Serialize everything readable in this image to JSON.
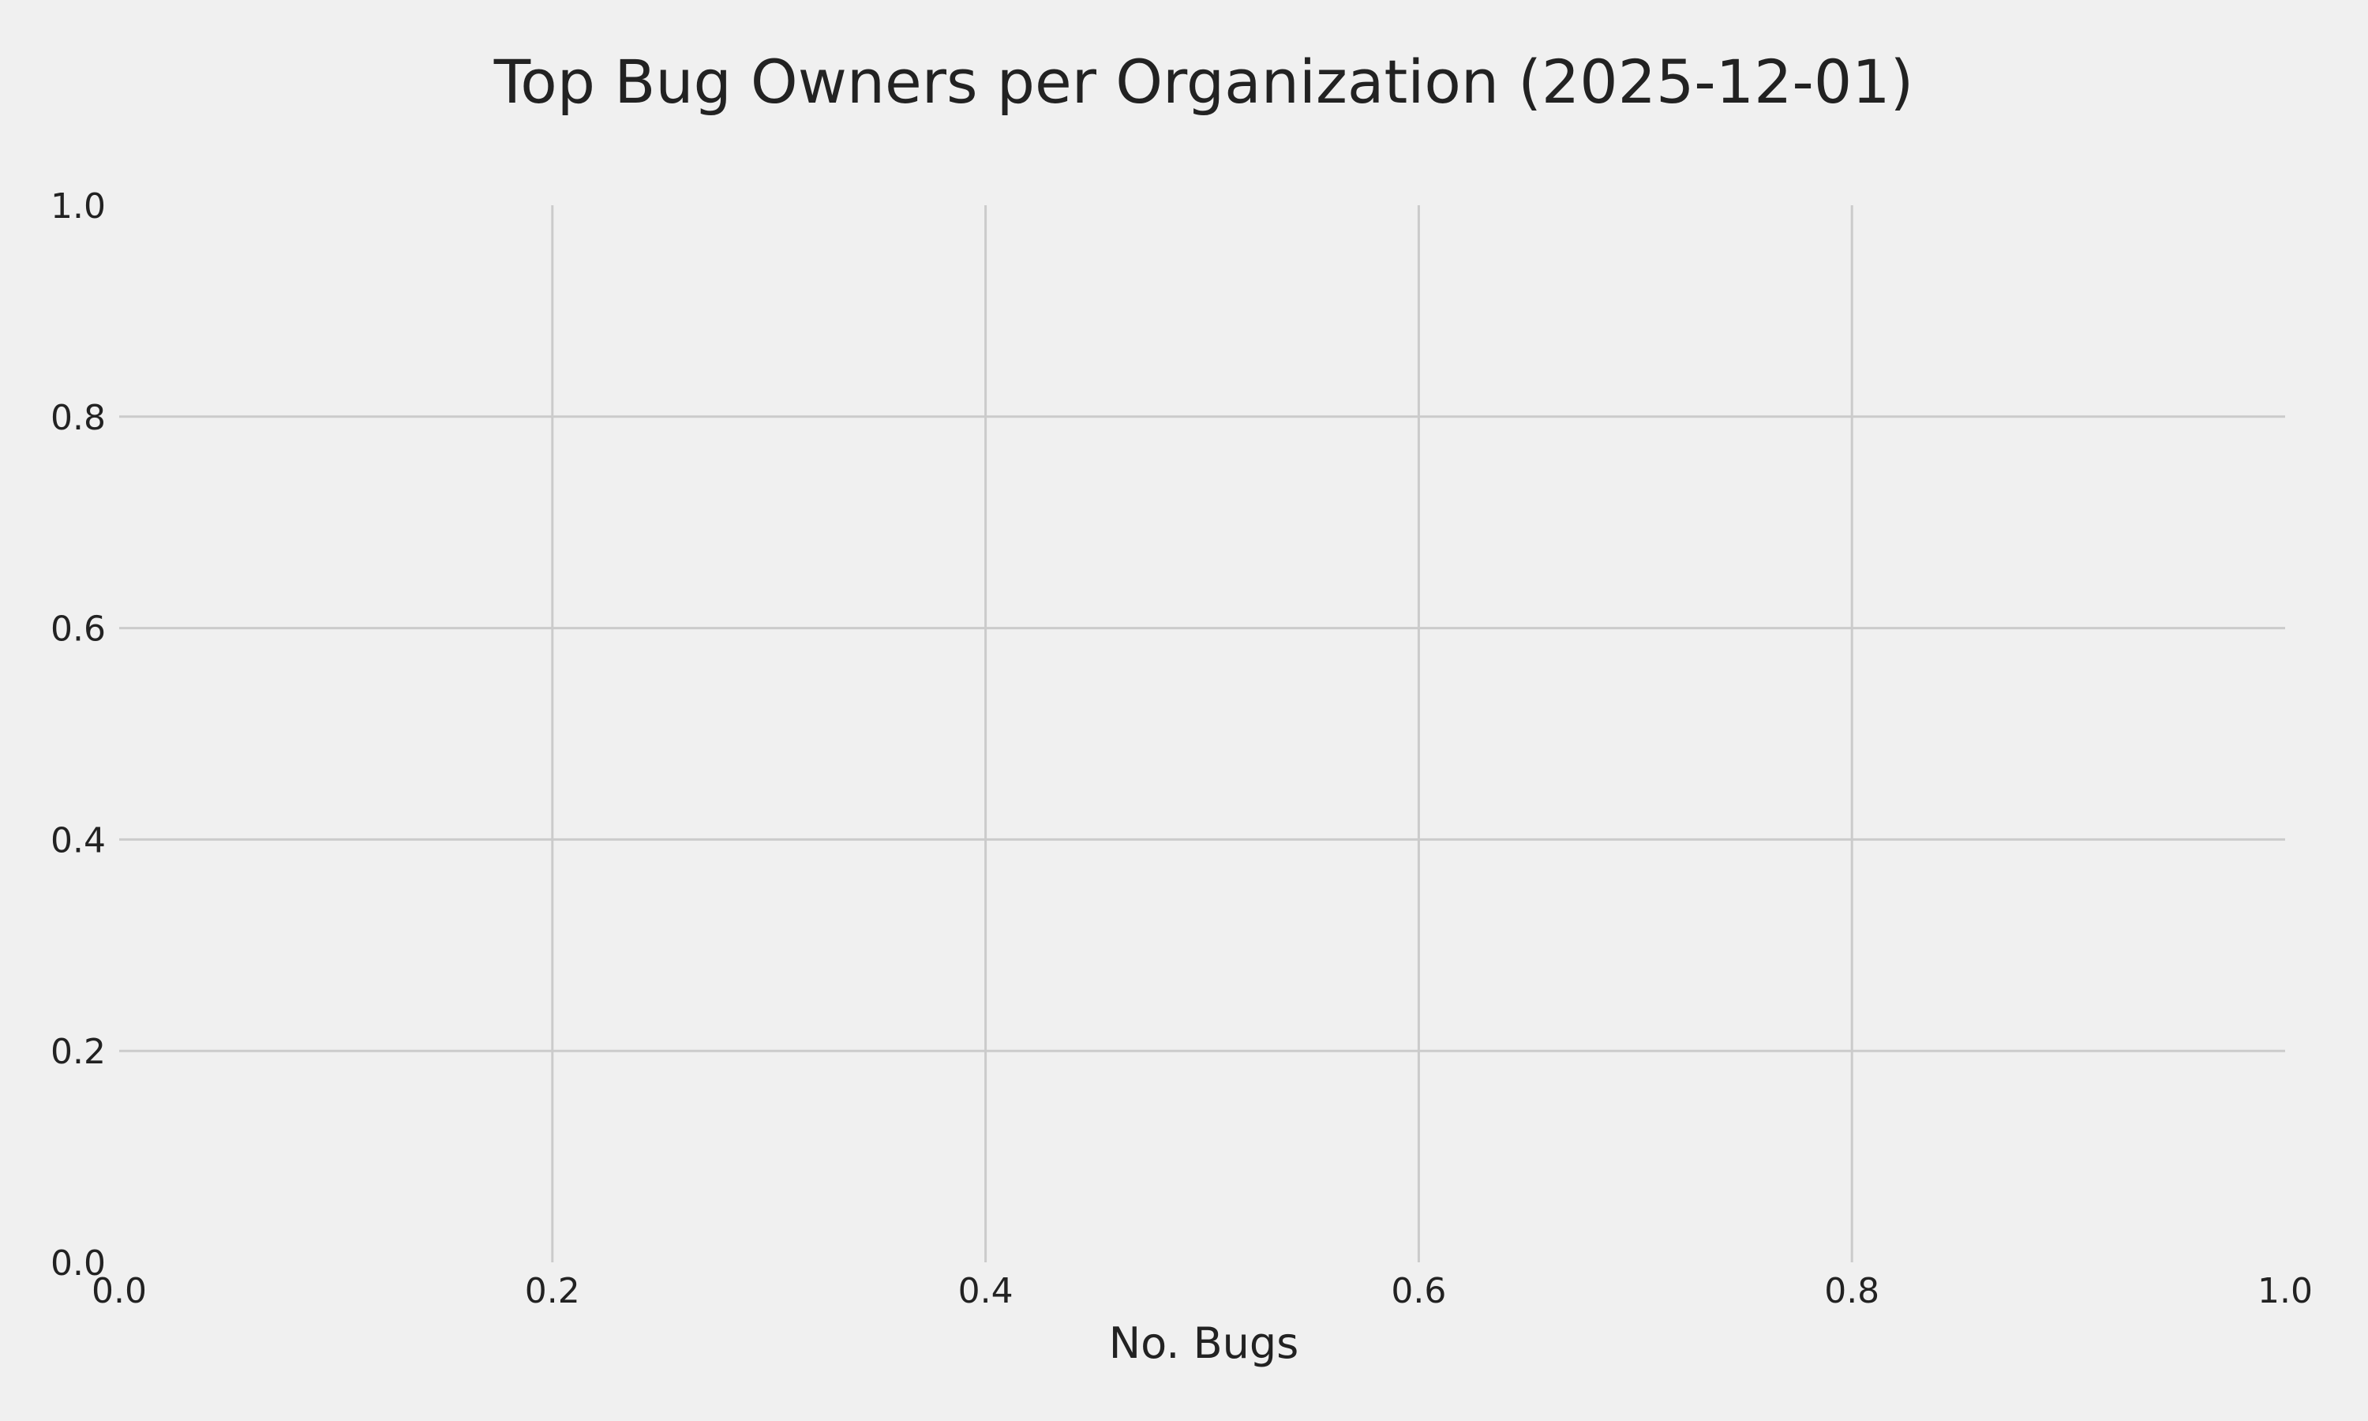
{
  "chart_data": {
    "type": "bar",
    "title": "Top Bug Owners per Organization (2025-12-01)",
    "xlabel": "No. Bugs",
    "ylabel": "",
    "categories": [],
    "values": [],
    "xlim": [
      0.0,
      1.0
    ],
    "ylim": [
      0.0,
      1.0
    ],
    "xticks": [
      "0.0",
      "0.2",
      "0.4",
      "0.6",
      "0.8",
      "1.0"
    ],
    "yticks": [
      "0.0",
      "0.2",
      "0.4",
      "0.6",
      "0.8",
      "1.0"
    ],
    "grid": true,
    "colors": {
      "background": "#f0f0f0",
      "grid": "#cbcbcb",
      "text": "#222222"
    }
  }
}
